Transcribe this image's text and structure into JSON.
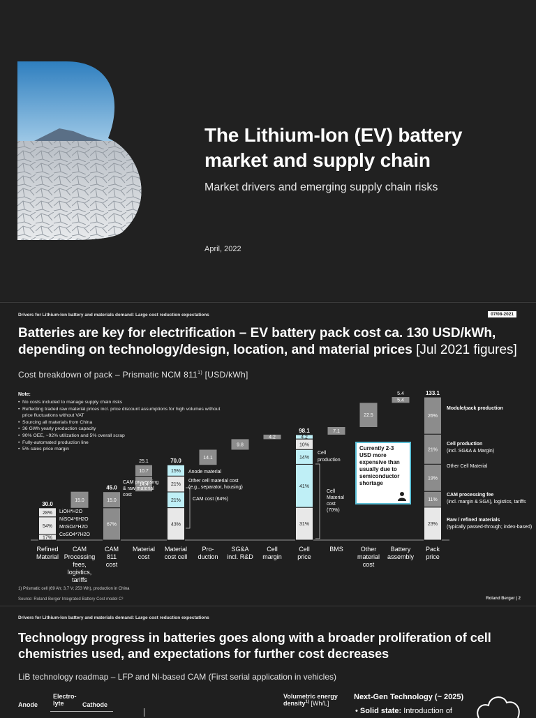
{
  "slide1": {
    "title": "The Lithium-Ion (EV) battery market and supply chain",
    "subtitle": "Market drivers and emerging supply chain risks",
    "date": "April, 2022",
    "logo_letter": "B"
  },
  "slide2": {
    "breadcrumb": "Drivers for Lithium-Ion battery and materials demand: Large cost reduction expectations",
    "date_badge": "07/08-2021",
    "title_main": "Batteries are key for electrification – EV battery pack cost ca. 130 USD/kWh, depending on technology/design, location, and material prices",
    "title_suffix": " [Jul 2021 figures]",
    "chart_subtitle": "Cost breakdown of pack – Prismatic NCM 811",
    "chart_subtitle_sup": "1)",
    "chart_subtitle_unit": " [USD/kWh]",
    "note_heading": "Note:",
    "notes": [
      "No costs included to manage supply chain risks",
      "Reflecting traded raw material prices incl. price discount assumptions for high volumes without price fluctuations without VAT",
      "Sourcing all materials from China",
      "36 GWh yearly production capacity",
      "90% OEE, ~92% utilization and 5% overall scrap",
      "Fully-automated production line",
      "5% sales price margin"
    ],
    "callout_text": "Currently 2-3 USD more expensive than usually due to semiconductor shortage",
    "footnote": "1) Prismatic cell (69 Ah; 3,7 V; 253 Wh), production in China",
    "source": "Source: Roland Berger Integrated Battery Cost model C³",
    "brand": "Roland Berger",
    "page": "2",
    "colors": {
      "grey_bar": "#8c8c8c",
      "light_bar": "#e8e8e8",
      "cyan_bar": "#bfeff6",
      "accent": "#5bbfd6"
    }
  },
  "chart_data": {
    "type": "bar",
    "subtype": "waterfall",
    "unit": "USD/kWh",
    "categories": [
      "Refined Material",
      "CAM Processing fees, logistics, tariffs",
      "CAM 811 cost",
      "Material cost",
      "Material cost cell",
      "Pro-duction",
      "SG&A incl. R&D",
      "Cell margin",
      "Cell price",
      "BMS",
      "Other material cost",
      "Battery assembly",
      "Pack price"
    ],
    "values": [
      30.0,
      15.0,
      45.0,
      25.1,
      70.0,
      14.1,
      9.8,
      4.2,
      98.1,
      7.1,
      22.5,
      5.4,
      133.1
    ],
    "value_labels": [
      "30.0",
      "15.0",
      "45.0",
      "25.1",
      "70.0",
      "14.1",
      "9.8",
      "4.2",
      "98.1",
      "7.1",
      "22.5",
      "5.4",
      "133.1"
    ],
    "kinds": [
      "total",
      "step",
      "total",
      "step",
      "total",
      "step",
      "step",
      "step",
      "total",
      "step",
      "step",
      "step",
      "total"
    ],
    "segments": {
      "Refined Material": {
        "labels": [
          "28%",
          "54%",
          "17%"
        ],
        "values": [
          28,
          54,
          17
        ],
        "materials": [
          "LiOH*H2O",
          "NiSO4*6H2O",
          "MnSO4*H2O",
          "CoSO4*7H2O"
        ]
      },
      "CAM 811 cost": {
        "labels": [
          "15.0",
          "67%"
        ],
        "values": [
          15.0,
          30.0
        ]
      },
      "Material cost": {
        "labels": [
          "10.7",
          "14.4"
        ],
        "values": [
          10.7,
          14.4
        ]
      },
      "Material cost cell": {
        "labels": [
          "15%",
          "21%",
          "21%",
          "43%"
        ],
        "values": [
          15,
          21,
          21,
          43
        ]
      },
      "Cell price": {
        "labels": [
          "4.2",
          "10%",
          "14%",
          "41%",
          "31%"
        ],
        "values": [
          4.2,
          10,
          14,
          41,
          31
        ]
      },
      "Pack price": {
        "labels": [
          "26%",
          "21%",
          "19%",
          "11%",
          "23%"
        ],
        "values": [
          26,
          21,
          19,
          11,
          23
        ]
      }
    },
    "annotations": {
      "cam_processing": "CAM processing & raw material cost",
      "anode": "Anode material",
      "anode_sup": "2)",
      "other_cell": "Other cell material cost (e.g., separator, housing)",
      "cam_cost": "CAM cost (64%)",
      "cell_production": "Cell production",
      "cell_material": "Cell Material cost (70%)",
      "pack_labels": [
        {
          "bold": "Module/pack production",
          "normal": ""
        },
        {
          "bold": "Cell production",
          "normal": "(incl. SG&A & Margin)"
        },
        {
          "bold": "",
          "normal": "Other Cell Material"
        },
        {
          "bold": "CAM processing fee",
          "normal": "(incl. margin & SGA), logistics, tariffs"
        },
        {
          "bold": "Raw / refined materials",
          "normal": "(typically passed-through; index-based)"
        }
      ]
    }
  },
  "slide3": {
    "breadcrumb": "Drivers for Lithium-Ion battery and materials demand: Large cost reduction expectations",
    "title": "Technology progress in batteries goes along with a broader proliferation of cell chemistries used, and expectations for further cost decreases",
    "subtitle": "LiB technology roadmap – LFP and Ni-based CAM (First serial application in vehicles)",
    "col_anode": "Anode",
    "col_electrolyte": "Electro-lyte",
    "col_cathode": "Cathode",
    "col_density": "Volumetric energy density",
    "col_density_sup": "1)",
    "col_density_unit": "[Wh/L]",
    "next_gen": "Next-Gen Technology (~ 2025)",
    "solid_state_bold": "Solid state:",
    "solid_state_text": " Introduction of"
  }
}
